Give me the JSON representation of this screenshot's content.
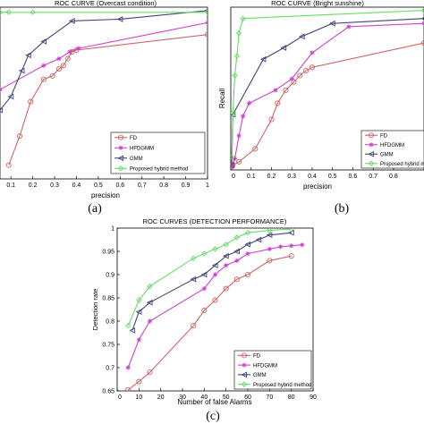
{
  "colors": {
    "FD": "#cc6666",
    "HFDGMM": "#cc44cc",
    "GMM": "#44447a",
    "Proposed hybrid method": "#66dd66",
    "axis": "#000000"
  },
  "chart_data": [
    {
      "id": "a",
      "type": "line",
      "title": "ROC CURVE (Overcast condition)",
      "xlabel": "precision",
      "ylabel": "",
      "caption": "(a)",
      "xlim": [
        0.05,
        1.0
      ],
      "ylim": [
        0.0,
        1.0
      ],
      "xticks": [
        "0.1",
        "0.2",
        "0.3",
        "0.4",
        "0.5",
        "0.6",
        "0.7",
        "0.8",
        "0.9",
        "1"
      ],
      "xtick_values": [
        0.1,
        0.2,
        0.3,
        0.4,
        0.5,
        0.6,
        0.7,
        0.8,
        0.9,
        1.0
      ],
      "yticks": [],
      "ytick_values": [],
      "legend_position": "bottom-right",
      "series": [
        {
          "name": "FD",
          "marker": "circle",
          "x": [
            0.09,
            0.14,
            0.19,
            0.25,
            0.29,
            0.32,
            0.34,
            0.36,
            0.38,
            0.4,
            1.0
          ],
          "y": [
            0.08,
            0.25,
            0.45,
            0.58,
            0.6,
            0.64,
            0.66,
            0.7,
            0.74,
            0.75,
            0.84
          ]
        },
        {
          "name": "HFDGMM",
          "marker": "star",
          "x": [
            0.05,
            0.25,
            0.32,
            0.37,
            0.41,
            1.0
          ],
          "y": [
            0.52,
            0.66,
            0.7,
            0.74,
            0.76,
            0.91
          ]
        },
        {
          "name": "GMM",
          "marker": "triangle-left",
          "x": [
            0.05,
            0.1,
            0.15,
            0.18,
            0.25,
            0.38,
            0.6,
            1.0
          ],
          "y": [
            0.4,
            0.48,
            0.63,
            0.72,
            0.8,
            0.92,
            0.93,
            0.98
          ]
        },
        {
          "name": "Proposed hybrid method",
          "marker": "diamond",
          "x": [
            0.05,
            0.09,
            0.2,
            1.0
          ],
          "y": [
            0.97,
            0.97,
            0.97,
            0.97
          ]
        }
      ]
    },
    {
      "id": "b",
      "type": "line",
      "title": "ROC CURVE (Bright sunshine)",
      "xlabel": "precision",
      "ylabel": "Recall",
      "caption": "(b)",
      "xlim": [
        0.0,
        0.95
      ],
      "ylim": [
        0.0,
        1.0
      ],
      "xticks": [
        "0",
        "0.1",
        "0.2",
        "0.3",
        "0.4",
        "0.5",
        "0.6",
        "0.7",
        "0.8"
      ],
      "xtick_values": [
        0.0,
        0.1,
        0.2,
        0.3,
        0.4,
        0.5,
        0.6,
        0.7,
        0.8
      ],
      "yticks": [],
      "ytick_values": [],
      "legend_position": "bottom-right",
      "series": [
        {
          "name": "FD",
          "marker": "circle",
          "x": [
            0.005,
            0.01,
            0.04,
            0.12,
            0.2,
            0.23,
            0.27,
            0.31,
            0.34,
            0.37,
            0.4,
            0.95
          ],
          "y": [
            0.02,
            0.03,
            0.05,
            0.13,
            0.31,
            0.41,
            0.49,
            0.54,
            0.58,
            0.61,
            0.63,
            0.78
          ]
        },
        {
          "name": "HFDGMM",
          "marker": "star",
          "x": [
            0.005,
            0.02,
            0.04,
            0.06,
            0.09,
            0.22,
            0.3,
            0.4,
            0.58,
            0.95
          ],
          "y": [
            0.02,
            0.07,
            0.21,
            0.33,
            0.41,
            0.49,
            0.56,
            0.72,
            0.88,
            0.9
          ]
        },
        {
          "name": "GMM",
          "marker": "triangle-left",
          "x": [
            0.005,
            0.01,
            0.16,
            0.26,
            0.35,
            0.5,
            0.95
          ],
          "y": [
            0.03,
            0.34,
            0.68,
            0.75,
            0.82,
            0.9,
            0.93
          ]
        },
        {
          "name": "Proposed hybrid method",
          "marker": "diamond",
          "x": [
            0.005,
            0.01,
            0.02,
            0.03,
            0.04,
            0.06,
            0.95
          ],
          "y": [
            0.08,
            0.35,
            0.58,
            0.7,
            0.84,
            0.93,
            0.98
          ]
        }
      ]
    },
    {
      "id": "c",
      "type": "line",
      "title": "ROC CURVES (DETECTION PERFORMANCE)",
      "xlabel": "Number of false Alarms",
      "ylabel": "Detection rate",
      "caption": "(c)",
      "xlim": [
        0,
        90
      ],
      "ylim": [
        0.65,
        1.0
      ],
      "xticks": [
        "0",
        "10",
        "20",
        "30",
        "40",
        "50",
        "60",
        "70",
        "80",
        "90"
      ],
      "xtick_values": [
        0,
        10,
        20,
        30,
        40,
        50,
        60,
        70,
        80,
        90
      ],
      "yticks": [
        "0.65",
        "0.7",
        "0.75",
        "0.8",
        "0.85",
        "0.9",
        "0.95",
        "1"
      ],
      "ytick_values": [
        0.65,
        0.7,
        0.75,
        0.8,
        0.85,
        0.9,
        0.95,
        1.0
      ],
      "legend_position": "bottom-right",
      "series": [
        {
          "name": "FD",
          "marker": "circle",
          "x": [
            5,
            10,
            15,
            35,
            40,
            45,
            50,
            55,
            60,
            70,
            80
          ],
          "y": [
            0.652,
            0.67,
            0.69,
            0.79,
            0.823,
            0.845,
            0.87,
            0.89,
            0.9,
            0.93,
            0.94
          ]
        },
        {
          "name": "HFDGMM",
          "marker": "star",
          "x": [
            5,
            10,
            15,
            40,
            45,
            50,
            55,
            60,
            70,
            75,
            80,
            85
          ],
          "y": [
            0.7,
            0.76,
            0.8,
            0.87,
            0.9,
            0.92,
            0.93,
            0.945,
            0.955,
            0.96,
            0.962,
            0.964
          ]
        },
        {
          "name": "GMM",
          "marker": "triangle-left",
          "x": [
            7,
            10,
            15,
            35,
            40,
            45,
            50,
            55,
            60,
            65,
            70,
            80
          ],
          "y": [
            0.78,
            0.82,
            0.84,
            0.89,
            0.9,
            0.92,
            0.94,
            0.95,
            0.965,
            0.975,
            0.985,
            0.99
          ]
        },
        {
          "name": "Proposed hybrid method",
          "marker": "diamond",
          "x": [
            5,
            10,
            15,
            35,
            40,
            45,
            50,
            55,
            60,
            70,
            80
          ],
          "y": [
            0.79,
            0.845,
            0.875,
            0.935,
            0.945,
            0.955,
            0.965,
            0.98,
            0.99,
            0.995,
            0.998
          ]
        }
      ]
    }
  ]
}
